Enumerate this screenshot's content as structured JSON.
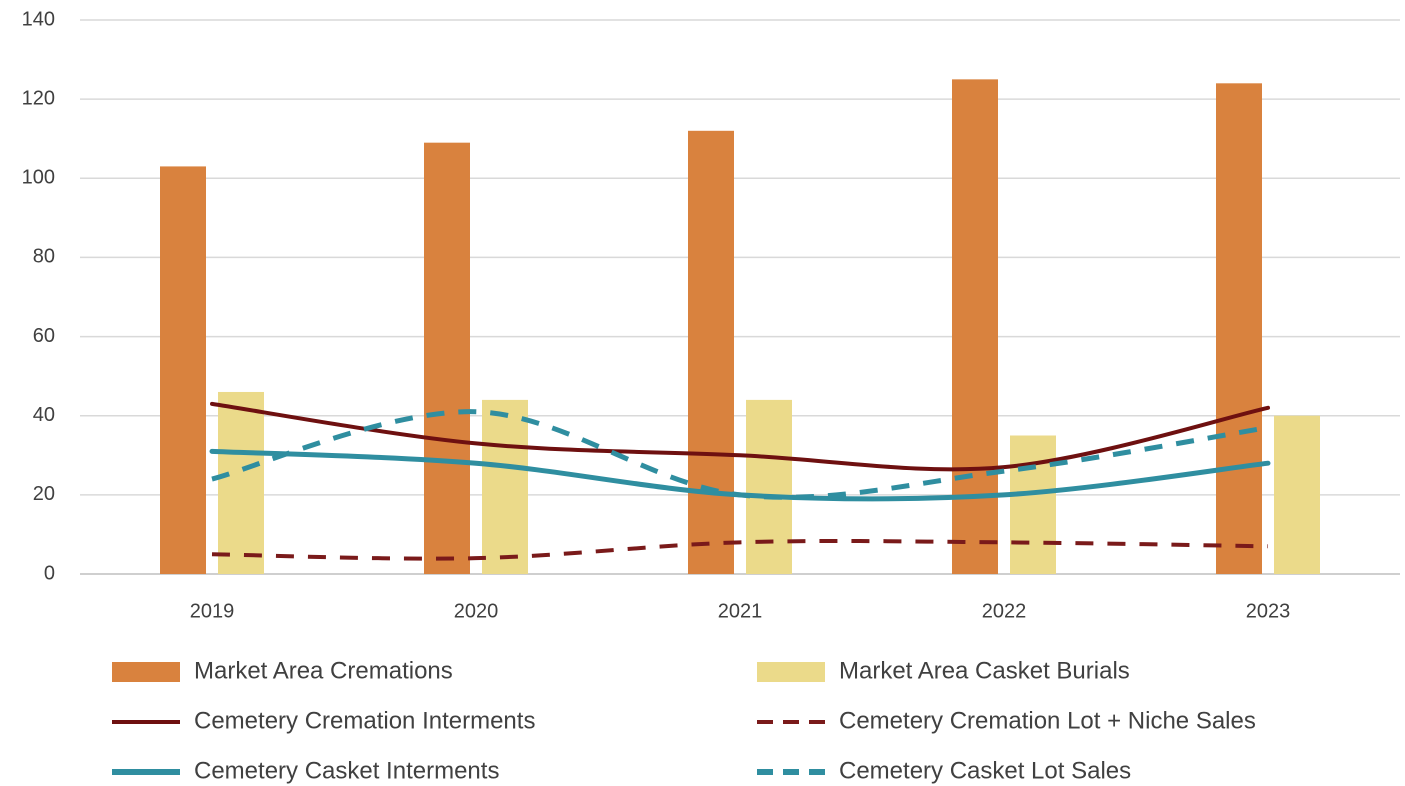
{
  "chart_data": {
    "type": "combo",
    "categories": [
      "2019",
      "2020",
      "2021",
      "2022",
      "2023"
    ],
    "ylim": [
      0,
      140
    ],
    "yticks": [
      0,
      20,
      40,
      60,
      80,
      100,
      120,
      140
    ],
    "grid": true,
    "legend": "bottom",
    "series": [
      {
        "name": "Market Area Cremations",
        "type": "bar",
        "color": "#d9823e",
        "values": [
          103,
          109,
          112,
          125,
          124
        ]
      },
      {
        "name": "Market Area Casket Burials",
        "type": "bar",
        "color": "#ebda8a",
        "values": [
          46,
          44,
          44,
          35,
          40
        ]
      },
      {
        "name": "Cemetery Cremation Interments",
        "type": "line",
        "dash": "solid",
        "color": "#6e1010",
        "values": [
          43,
          33,
          30,
          27,
          42
        ]
      },
      {
        "name": "Cemetery Cremation Lot + Niche Sales",
        "type": "line",
        "dash": "dashed",
        "color": "#7a1a1a",
        "values": [
          5,
          4,
          8,
          8,
          7
        ]
      },
      {
        "name": "Cemetery Casket Interments",
        "type": "line",
        "dash": "solid",
        "color": "#2f8ea0",
        "values": [
          31,
          28,
          20,
          20,
          28
        ]
      },
      {
        "name": "Cemetery Casket Lot Sales",
        "type": "line",
        "dash": "dashed",
        "color": "#2f8ea0",
        "values": [
          24,
          41,
          20,
          26,
          37
        ]
      }
    ]
  }
}
